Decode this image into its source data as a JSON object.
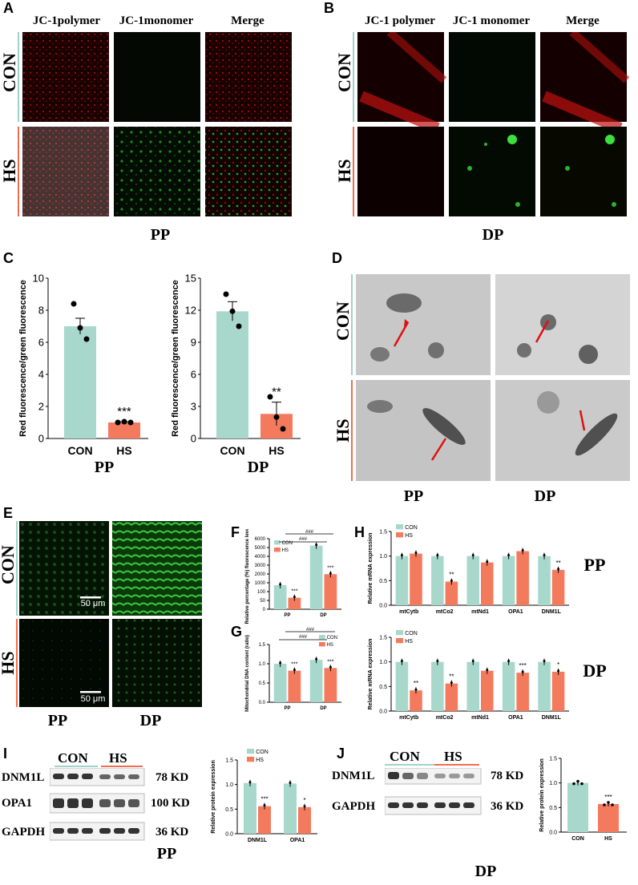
{
  "panels": {
    "A": {
      "label": "A",
      "cols": [
        "JC-1polymer",
        "JC-1monomer",
        "Merge"
      ],
      "rows": [
        "CON",
        "HS"
      ],
      "tissue": "PP"
    },
    "B": {
      "label": "B",
      "cols": [
        "JC-1 polymer",
        "JC-1 monomer",
        "Merge"
      ],
      "rows": [
        "CON",
        "HS"
      ],
      "tissue": "DP"
    },
    "C": {
      "label": "C",
      "tissues": [
        "PP",
        "DP"
      ]
    },
    "D": {
      "label": "D",
      "rows": [
        "CON",
        "HS"
      ],
      "tissues": [
        "PP",
        "DP"
      ]
    },
    "E": {
      "label": "E",
      "rows": [
        "CON",
        "HS"
      ],
      "tissues": [
        "PP",
        "DP"
      ],
      "scalebar": "50 μm"
    },
    "F": {
      "label": "F"
    },
    "G": {
      "label": "G"
    },
    "H": {
      "label": "H",
      "tissues": [
        "PP",
        "DP"
      ]
    },
    "I": {
      "label": "I",
      "groups": [
        "CON",
        "HS"
      ],
      "bands": [
        {
          "name": "DNM1L",
          "kd": "78 KD"
        },
        {
          "name": "OPA1",
          "kd": "100 KD"
        },
        {
          "name": "GAPDH",
          "kd": "36 KD"
        }
      ],
      "tissue": "PP"
    },
    "J": {
      "label": "J",
      "groups": [
        "CON",
        "HS"
      ],
      "bands": [
        {
          "name": "DNM1L",
          "kd": "78 KD"
        },
        {
          "name": "GAPDH",
          "kd": "36 KD"
        }
      ],
      "tissue": "DP"
    }
  },
  "colors": {
    "con": "#a8d8cc",
    "hs": "#f47a5e",
    "con_line": "#9fd3c7",
    "hs_line": "#f26c50"
  },
  "chart_data": [
    {
      "id": "C_PP",
      "type": "bar",
      "categories": [
        "CON",
        "HS"
      ],
      "values": [
        7.0,
        1.0
      ],
      "errors": [
        0.5,
        0.05
      ],
      "points": [
        [
          8.4,
          6.9,
          6.2
        ],
        [
          1.0,
          1.05,
          1.0
        ]
      ],
      "ylabel": "Red fluorescence/green fluorescence",
      "ylim": [
        0,
        10
      ],
      "yticks": [
        "0",
        "2",
        "4",
        "6",
        "8",
        "10"
      ],
      "annotations": [
        "",
        "***"
      ],
      "xlabel": "PP"
    },
    {
      "id": "C_DP",
      "type": "bar",
      "categories": [
        "CON",
        "HS"
      ],
      "values": [
        11.9,
        2.3
      ],
      "errors": [
        0.9,
        1.1
      ],
      "points": [
        [
          13.5,
          11.9,
          10.5
        ],
        [
          3.9,
          2.0,
          0.9
        ]
      ],
      "ylabel": "Red fluorescence/green fluorescence",
      "ylim": [
        0,
        15
      ],
      "yticks": [
        "0",
        "3",
        "6",
        "9",
        "12",
        "15"
      ],
      "annotations": [
        "",
        "**"
      ],
      "xlabel": "DP"
    },
    {
      "id": "F",
      "type": "bar",
      "categories": [
        "PP",
        "DP"
      ],
      "series": [
        {
          "name": "CON",
          "values": [
            100,
            5200
          ]
        },
        {
          "name": "HS",
          "values": [
            48,
            1900
          ]
        }
      ],
      "ylabel": "Relative percentage (%) fluorescence levels",
      "yticks": [
        "0",
        "50",
        "100",
        "1000",
        "2000",
        "3000",
        "4000",
        "5000",
        "6000"
      ],
      "annotations": [
        "***",
        "***"
      ],
      "brackets": [
        "###",
        "###"
      ]
    },
    {
      "id": "G",
      "type": "bar",
      "categories": [
        "PP",
        "DP"
      ],
      "series": [
        {
          "name": "CON",
          "values": [
            1.0,
            1.1
          ]
        },
        {
          "name": "HS",
          "values": [
            0.82,
            0.89
          ]
        }
      ],
      "ylabel": "Mitochondrial DNA content (ratio)",
      "ylim": [
        0,
        1.5
      ],
      "yticks": [
        "0.0",
        "0.5",
        "1.0",
        "1.5"
      ],
      "annotations": [
        "***",
        "***"
      ],
      "brackets": [
        "###",
        "###"
      ]
    },
    {
      "id": "H_PP",
      "type": "bar",
      "categories": [
        "mtCytb",
        "mtCo2",
        "mtNd1",
        "OPA1",
        "DNM1L"
      ],
      "series": [
        {
          "name": "CON",
          "values": [
            1.0,
            1.0,
            1.0,
            1.0,
            1.0
          ]
        },
        {
          "name": "HS",
          "values": [
            1.05,
            0.48,
            0.87,
            1.1,
            0.72
          ]
        }
      ],
      "ylabel": "Relative mRNA expression",
      "ylim": [
        0,
        1.5
      ],
      "yticks": [
        "0.0",
        "0.5",
        "1.0",
        "1.5"
      ],
      "annotations": [
        "",
        "**",
        "",
        "",
        "**"
      ]
    },
    {
      "id": "H_DP",
      "type": "bar",
      "categories": [
        "mtCytb",
        "mtCo2",
        "mtNd1",
        "OPA1",
        "DNM1L"
      ],
      "series": [
        {
          "name": "CON",
          "values": [
            1.0,
            1.0,
            1.0,
            1.0,
            1.0
          ]
        },
        {
          "name": "HS",
          "values": [
            0.42,
            0.56,
            0.82,
            0.78,
            0.8
          ]
        }
      ],
      "ylabel": "Relative mRNA expression",
      "ylim": [
        0,
        1.5
      ],
      "yticks": [
        "0.0",
        "0.5",
        "1.0",
        "1.5"
      ],
      "annotations": [
        "**",
        "**",
        "",
        "***",
        "*"
      ]
    },
    {
      "id": "I",
      "type": "bar",
      "categories": [
        "DNM1L",
        "OPA1"
      ],
      "series": [
        {
          "name": "CON",
          "values": [
            1.03,
            1.02
          ]
        },
        {
          "name": "HS",
          "values": [
            0.56,
            0.54
          ]
        }
      ],
      "ylabel": "Relative protein expression",
      "ylim": [
        0,
        1.5
      ],
      "yticks": [
        "0.0",
        "0.5",
        "1.0",
        "1.5"
      ],
      "annotations": [
        "***",
        "*"
      ]
    },
    {
      "id": "J",
      "type": "bar",
      "categories": [
        "CON",
        "HS"
      ],
      "values": [
        1.0,
        0.57
      ],
      "ylabel": "Relative protein expression",
      "ylim": [
        0,
        1.5
      ],
      "yticks": [
        "0.0",
        "0.5",
        "1.0",
        "1.5"
      ],
      "annotations": [
        "",
        "***"
      ]
    }
  ]
}
